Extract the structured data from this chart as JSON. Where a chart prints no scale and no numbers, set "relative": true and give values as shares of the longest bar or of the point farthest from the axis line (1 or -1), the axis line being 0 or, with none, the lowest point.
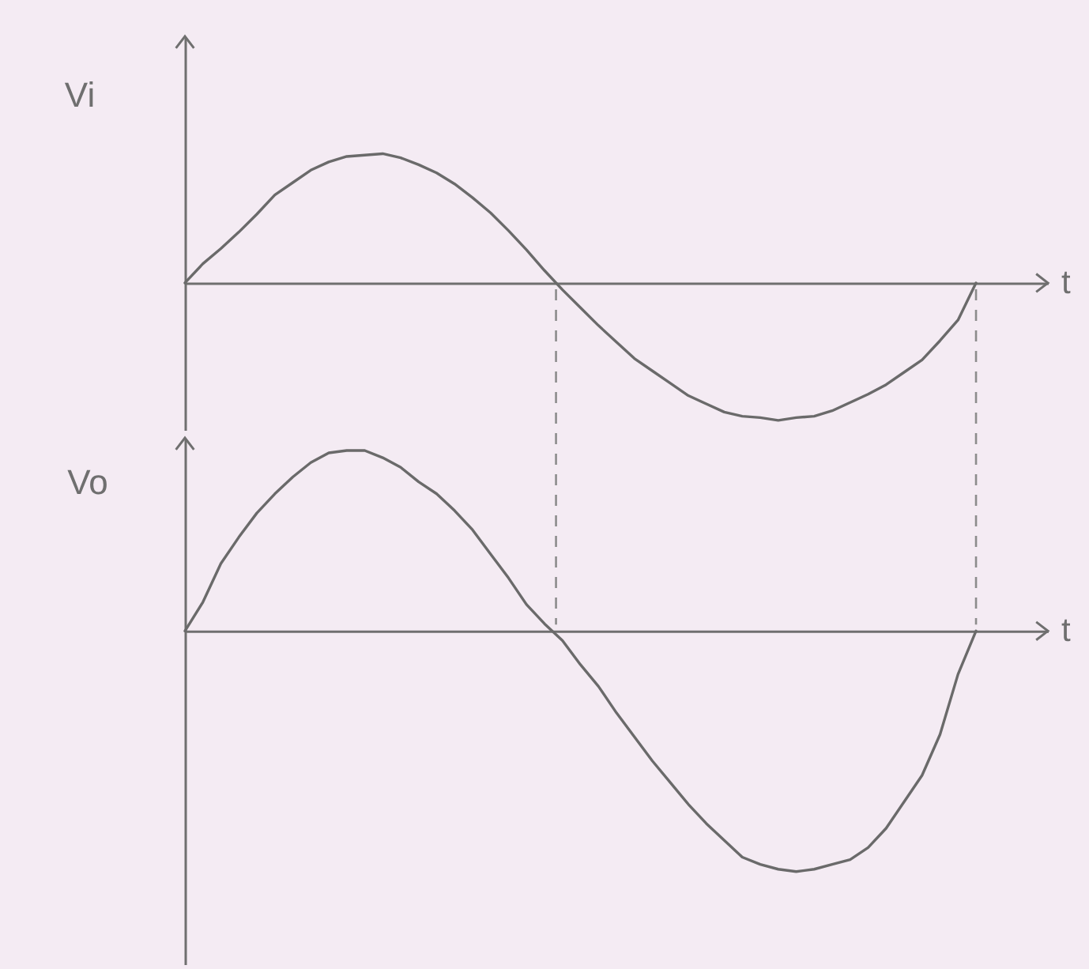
{
  "chart_data": [
    {
      "type": "line",
      "ylabel": "Vi",
      "xlabel": "t",
      "relative": true,
      "color": "#6a6a6a",
      "categories": [
        null,
        null,
        null,
        null,
        null,
        null,
        null,
        null,
        null,
        null,
        null,
        null,
        null,
        null,
        null,
        null,
        null,
        null,
        null,
        null,
        null,
        null,
        null,
        null,
        null,
        null,
        null,
        null,
        null,
        null,
        null,
        null,
        null,
        null,
        null,
        null,
        null,
        null,
        null,
        null,
        null,
        null,
        null,
        null,
        null,
        null,
        null,
        null,
        null
      ],
      "values": [
        0,
        0.14,
        0.25,
        0.37,
        0.5,
        0.64,
        0.73,
        0.82,
        0.88,
        0.92,
        0.93,
        0.94,
        0.91,
        0.86,
        0.8,
        0.72,
        0.62,
        0.51,
        0.38,
        0.24,
        0.09,
        -0.05,
        -0.18,
        -0.31,
        -0.43,
        -0.55,
        -0.64,
        -0.73,
        -0.82,
        -0.88,
        -0.94,
        -0.97,
        -0.98,
        -1,
        -0.98,
        -0.97,
        -0.93,
        -0.87,
        -0.81,
        -0.74,
        -0.65,
        -0.56,
        -0.42,
        -0.27,
        0,
        null,
        null,
        null,
        null
      ]
    },
    {
      "type": "line",
      "ylabel": "Vo",
      "xlabel": "t",
      "relative": true,
      "color": "#6a6a6a",
      "categories": [
        null,
        null,
        null,
        null,
        null,
        null,
        null,
        null,
        null,
        null,
        null,
        null,
        null,
        null,
        null,
        null,
        null,
        null,
        null,
        null,
        null,
        null,
        null,
        null,
        null,
        null,
        null,
        null,
        null,
        null,
        null,
        null,
        null,
        null,
        null,
        null,
        null,
        null,
        null,
        null,
        null,
        null,
        null,
        null,
        null,
        null,
        null,
        null,
        null
      ],
      "values": [
        0,
        0.12,
        0.28,
        0.39,
        0.49,
        0.57,
        0.64,
        0.7,
        0.74,
        0.75,
        0.75,
        0.72,
        0.68,
        0.62,
        0.57,
        0.5,
        0.42,
        0.32,
        0.22,
        0.11,
        0.03,
        -0.04,
        -0.14,
        -0.23,
        -0.34,
        -0.44,
        -0.54,
        -0.63,
        -0.72,
        -0.8,
        -0.87,
        -0.94,
        -0.97,
        -0.99,
        -1,
        -0.99,
        -0.97,
        -0.95,
        -0.9,
        -0.82,
        -0.71,
        -0.6,
        -0.43,
        -0.18,
        0,
        null,
        null,
        null,
        null
      ]
    }
  ]
}
